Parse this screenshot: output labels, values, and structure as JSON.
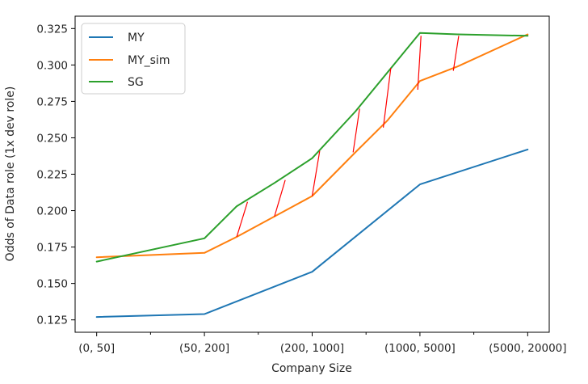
{
  "chart_data": {
    "type": "line",
    "title": "",
    "xlabel": "Company Size",
    "ylabel": "Odds of Data role (1x dev role)",
    "categories": [
      "(0, 50]",
      "(50, 200]",
      "(200, 1000]",
      "(1000, 5000]",
      "(5000, 20000]"
    ],
    "yticks": [
      "0.125",
      "0.150",
      "0.175",
      "0.200",
      "0.225",
      "0.250",
      "0.275",
      "0.300",
      "0.325"
    ],
    "ylim": [
      0.1165,
      0.3335
    ],
    "series": [
      {
        "name": "MY",
        "color": "#1f77b4",
        "x": [
          0,
          1,
          2,
          3,
          4
        ],
        "values": [
          0.127,
          0.129,
          0.158,
          0.218,
          0.242
        ]
      },
      {
        "name": "MY_sim",
        "color": "#ff7f0e",
        "x": [
          0,
          1,
          1.3,
          1.65,
          2,
          2.4,
          2.7,
          3,
          3.35,
          4
        ],
        "values": [
          0.168,
          0.171,
          0.182,
          0.196,
          0.21,
          0.24,
          0.262,
          0.289,
          0.299,
          0.321
        ]
      },
      {
        "name": "SG",
        "color": "#2ca02c",
        "x": [
          0,
          1,
          1.3,
          1.65,
          2,
          2.4,
          2.7,
          3,
          3.35,
          4
        ],
        "values": [
          0.165,
          0.181,
          0.203,
          0.219,
          0.236,
          0.268,
          0.295,
          0.322,
          0.321,
          0.32
        ]
      }
    ],
    "annotations": {
      "type": "red-segments",
      "color": "#ff0000",
      "segments": [
        {
          "x0": 1.3,
          "y0": 0.182,
          "x1": 1.4,
          "y1": 0.206
        },
        {
          "x0": 1.65,
          "y0": 0.196,
          "x1": 1.75,
          "y1": 0.221
        },
        {
          "x0": 2.0,
          "y0": 0.21,
          "x1": 2.07,
          "y1": 0.241
        },
        {
          "x0": 2.38,
          "y0": 0.24,
          "x1": 2.44,
          "y1": 0.27
        },
        {
          "x0": 2.66,
          "y0": 0.257,
          "x1": 2.73,
          "y1": 0.298
        },
        {
          "x0": 2.98,
          "y0": 0.283,
          "x1": 3.01,
          "y1": 0.32
        },
        {
          "x0": 3.31,
          "y0": 0.296,
          "x1": 3.36,
          "y1": 0.32
        }
      ]
    },
    "legend": {
      "position": "top-left",
      "entries": [
        "MY",
        "MY_sim",
        "SG"
      ]
    },
    "grid": false
  }
}
